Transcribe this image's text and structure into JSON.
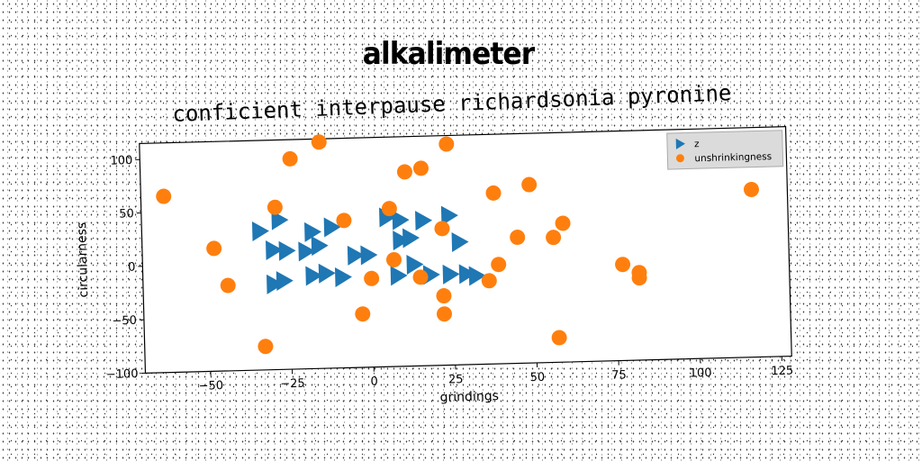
{
  "page_title": "alkalimeter",
  "chart_data": {
    "type": "scatter",
    "title": "conficient interpause richardsonia pyronine",
    "xlabel": "grindings",
    "ylabel": "circularness",
    "xlim": [
      -70,
      128
    ],
    "ylim": [
      -100,
      115
    ],
    "xticks": [
      -50,
      -25,
      0,
      25,
      50,
      75,
      100,
      125
    ],
    "yticks": [
      -100,
      -50,
      0,
      50,
      100
    ],
    "grid": false,
    "legend_position": "top-right",
    "series": [
      {
        "name": "z",
        "marker": "triangle-right",
        "color": "#1f77b4",
        "points": [
          [
            -34,
            30
          ],
          [
            -28,
            40
          ],
          [
            -18,
            28
          ],
          [
            -12,
            32
          ],
          [
            -30,
            12
          ],
          [
            -26,
            11
          ],
          [
            -20,
            10
          ],
          [
            -16,
            15
          ],
          [
            -5,
            5
          ],
          [
            -1,
            5
          ],
          [
            5,
            40
          ],
          [
            9,
            37
          ],
          [
            16,
            36
          ],
          [
            24,
            40
          ],
          [
            9,
            18
          ],
          [
            12,
            20
          ],
          [
            27,
            15
          ],
          [
            -30,
            -20
          ],
          [
            -27,
            -17
          ],
          [
            -18,
            -13
          ],
          [
            -14,
            -11
          ],
          [
            -9,
            -15
          ],
          [
            8,
            -15
          ],
          [
            13,
            -5
          ],
          [
            18,
            -15
          ],
          [
            24,
            -15
          ],
          [
            29,
            -15
          ],
          [
            32,
            -17
          ]
        ]
      },
      {
        "name": "unshrinkingness",
        "marker": "circle",
        "color": "#ff7f0e",
        "points": [
          [
            -63,
            65
          ],
          [
            -48,
            15
          ],
          [
            -44,
            -20
          ],
          [
            -33,
            -78
          ],
          [
            -29,
            52
          ],
          [
            -24,
            97
          ],
          [
            -15,
            112
          ],
          [
            -8,
            38
          ],
          [
            -3,
            -50
          ],
          [
            0,
            -17
          ],
          [
            6,
            48
          ],
          [
            7,
            0
          ],
          [
            11,
            82
          ],
          [
            16,
            85
          ],
          [
            15,
            -17
          ],
          [
            22,
            28
          ],
          [
            22,
            -35
          ],
          [
            22,
            -52
          ],
          [
            24,
            107
          ],
          [
            36,
            -22
          ],
          [
            38,
            60
          ],
          [
            39,
            -7
          ],
          [
            45,
            18
          ],
          [
            49,
            67
          ],
          [
            56,
            17
          ],
          [
            57,
            -77
          ],
          [
            59,
            30
          ],
          [
            77,
            -10
          ],
          [
            82,
            -18
          ],
          [
            82,
            -23
          ],
          [
            117,
            57
          ]
        ]
      }
    ]
  }
}
